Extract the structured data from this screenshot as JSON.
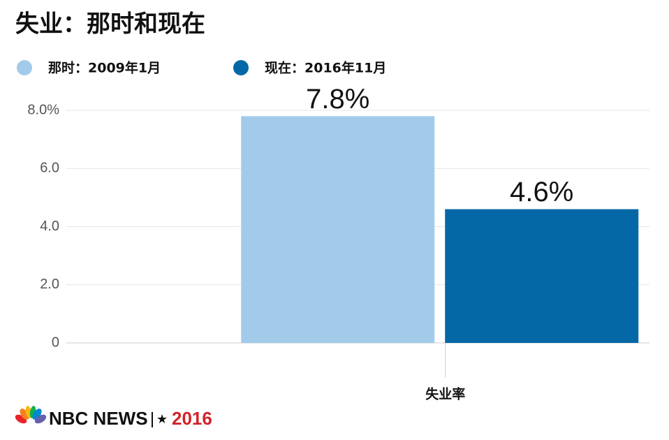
{
  "chart_data": {
    "type": "bar",
    "title": "失业：那时和现在",
    "categories": [
      "失业率"
    ],
    "series": [
      {
        "name": "那时：2009年1月",
        "color": "#a2cbea",
        "values": [
          7.8
        ],
        "value_labels": [
          "7.8%"
        ]
      },
      {
        "name": "现在：2016年11月",
        "color": "#0568a6",
        "values": [
          4.6
        ],
        "value_labels": [
          "4.6%"
        ]
      }
    ],
    "ylim": [
      0,
      8
    ],
    "yticks": [
      0,
      {
        "value": 2,
        "label": "2.0"
      },
      {
        "value": 4,
        "label": "4.0"
      },
      {
        "value": 6,
        "label": "6.0"
      },
      {
        "value": 8,
        "label": "8.0%"
      }
    ],
    "grid": true,
    "source": "NBC NEWS",
    "edition": "2016"
  }
}
